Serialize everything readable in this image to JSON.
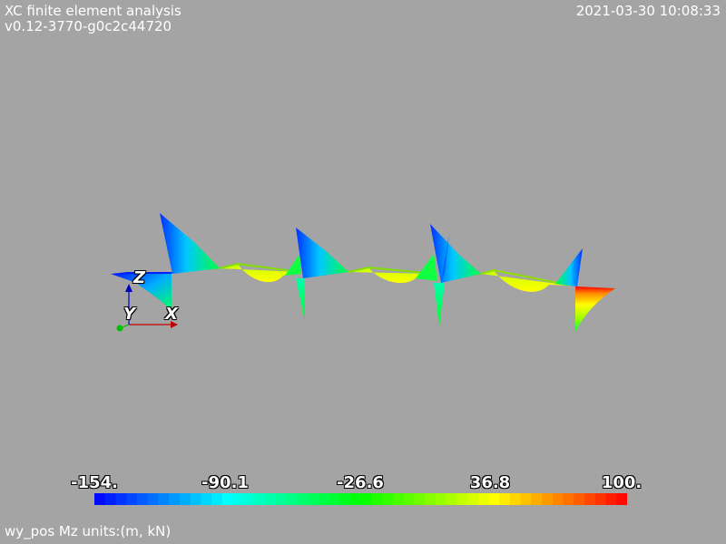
{
  "header": {
    "title": "XC finite element analysis",
    "version": "v0.12-3770-g0c2c44720",
    "timestamp": "2021-03-30 10:08:33"
  },
  "footer": {
    "label": "wy_pos Mz units:(m, kN)"
  },
  "colorbar": {
    "ticks": [
      "-154.",
      "-90.1",
      "-26.6",
      "36.8",
      "100."
    ],
    "min": -154,
    "max": 100,
    "colors": [
      "#0000ff",
      "#00ffff",
      "#00ff00",
      "#ffff00",
      "#ff0000"
    ],
    "segments": 50
  },
  "axes": {
    "x_label": "X",
    "y_label": "Y",
    "z_label": "Z",
    "x_color": "#c00000",
    "y_color": "#00c000",
    "z_color": "#0000c0"
  }
}
